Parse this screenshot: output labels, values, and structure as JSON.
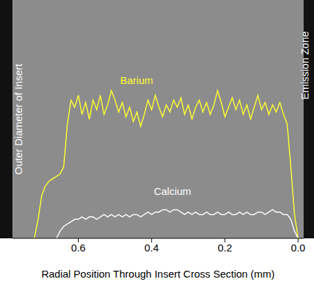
{
  "chart_data": {
    "type": "line",
    "x_label": "Radial Position Through Insert Cross Section (mm)",
    "x": [
      0.72,
      0.71,
      0.7,
      0.69,
      0.68,
      0.67,
      0.66,
      0.65,
      0.64,
      0.63,
      0.62,
      0.61,
      0.6,
      0.59,
      0.58,
      0.57,
      0.56,
      0.55,
      0.54,
      0.53,
      0.52,
      0.51,
      0.5,
      0.49,
      0.48,
      0.47,
      0.46,
      0.45,
      0.44,
      0.43,
      0.42,
      0.41,
      0.4,
      0.39,
      0.38,
      0.37,
      0.36,
      0.35,
      0.34,
      0.33,
      0.32,
      0.31,
      0.3,
      0.29,
      0.28,
      0.27,
      0.26,
      0.25,
      0.24,
      0.23,
      0.22,
      0.21,
      0.2,
      0.19,
      0.18,
      0.17,
      0.16,
      0.15,
      0.14,
      0.13,
      0.12,
      0.11,
      0.1,
      0.09,
      0.08,
      0.07,
      0.06,
      0.05,
      0.04,
      0.03,
      0.02,
      0.01,
      0.0
    ],
    "series": [
      {
        "name": "Barium",
        "color": "#ffff33",
        "values": [
          0,
          8,
          18,
          22,
          24,
          25,
          26,
          27,
          30,
          48,
          58,
          55,
          60,
          52,
          57,
          50,
          58,
          54,
          60,
          52,
          56,
          62,
          58,
          53,
          57,
          51,
          55,
          49,
          53,
          47,
          52,
          58,
          54,
          60,
          55,
          51,
          56,
          53,
          58,
          55,
          59,
          52,
          56,
          50,
          55,
          58,
          53,
          57,
          52,
          56,
          62,
          57,
          51,
          55,
          59,
          54,
          58,
          52,
          56,
          50,
          55,
          60,
          54,
          57,
          52,
          56,
          53,
          57,
          52,
          48,
          30,
          10,
          0
        ]
      },
      {
        "name": "Calcium",
        "color": "#ffffff",
        "values": [
          null,
          null,
          null,
          null,
          null,
          null,
          0,
          3,
          5,
          6,
          7,
          8,
          8,
          9,
          8,
          9,
          9,
          8,
          9,
          10,
          9,
          10,
          9,
          10,
          9,
          10,
          9,
          10,
          10,
          9,
          10,
          11,
          10,
          11,
          11,
          12,
          12,
          11,
          12,
          12,
          11,
          10,
          11,
          10,
          11,
          10,
          10,
          11,
          10,
          10,
          11,
          10,
          10,
          11,
          10,
          10,
          11,
          10,
          11,
          10,
          10,
          11,
          11,
          10,
          11,
          12,
          11,
          11,
          10,
          10,
          8,
          3,
          0
        ]
      }
    ],
    "xlim": [
      0.78,
      -0.015
    ],
    "xticks": [
      0.6,
      0.4,
      0.2,
      {
        "value": 0,
        "label": "0.0"
      }
    ],
    "ylim": [
      0,
      100
    ],
    "tick_labels": "x",
    "annotations": [
      {
        "text": "Outer Diameter of Insert"
      },
      {
        "text": "Emission Zone"
      }
    ]
  }
}
